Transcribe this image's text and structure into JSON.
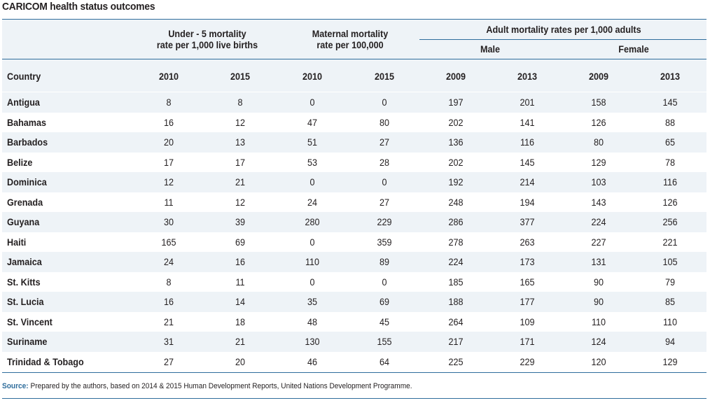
{
  "title": "CARICOM health status outcomes",
  "groups": {
    "under5": "Under - 5 mortality\nrate per 1,000 live births",
    "maternal": "Maternal mortality\nrate per 100,000",
    "adult": "Adult mortality rates per 1,000 adults",
    "male": "Male",
    "female": "Female"
  },
  "columns": {
    "country": "Country",
    "years": [
      "2010",
      "2015",
      "2010",
      "2015",
      "2009",
      "2013",
      "2009",
      "2013"
    ]
  },
  "rows": [
    {
      "country": "Antigua",
      "values": [
        "8",
        "8",
        "0",
        "0",
        "197",
        "201",
        "158",
        "145"
      ]
    },
    {
      "country": "Bahamas",
      "values": [
        "16",
        "12",
        "47",
        "80",
        "202",
        "141",
        "126",
        "88"
      ]
    },
    {
      "country": "Barbados",
      "values": [
        "20",
        "13",
        "51",
        "27",
        "136",
        "116",
        "80",
        "65"
      ]
    },
    {
      "country": "Belize",
      "values": [
        "17",
        "17",
        "53",
        "28",
        "202",
        "145",
        "129",
        "78"
      ]
    },
    {
      "country": "Dominica",
      "values": [
        "12",
        "21",
        "0",
        "0",
        "192",
        "214",
        "103",
        "116"
      ]
    },
    {
      "country": "Grenada",
      "values": [
        "11",
        "12",
        "24",
        "27",
        "248",
        "194",
        "143",
        "126"
      ]
    },
    {
      "country": "Guyana",
      "values": [
        "30",
        "39",
        "280",
        "229",
        "286",
        "377",
        "224",
        "256"
      ]
    },
    {
      "country": "Haiti",
      "values": [
        "165",
        "69",
        "0",
        "359",
        "278",
        "263",
        "227",
        "221"
      ]
    },
    {
      "country": "Jamaica",
      "values": [
        "24",
        "16",
        "110",
        "89",
        "224",
        "173",
        "131",
        "105"
      ]
    },
    {
      "country": "St. Kitts",
      "values": [
        "8",
        "11",
        "0",
        "0",
        "185",
        "165",
        "90",
        "79"
      ]
    },
    {
      "country": "St. Lucia",
      "values": [
        "16",
        "14",
        "35",
        "69",
        "188",
        "177",
        "90",
        "85"
      ]
    },
    {
      "country": "St. Vincent",
      "values": [
        "21",
        "18",
        "48",
        "45",
        "264",
        "109",
        "110",
        "110"
      ]
    },
    {
      "country": "Suriname",
      "values": [
        "31",
        "21",
        "130",
        "155",
        "217",
        "171",
        "124",
        "94"
      ]
    },
    {
      "country": "Trinidad & Tobago",
      "values": [
        "27",
        "20",
        "46",
        "64",
        "225",
        "229",
        "120",
        "129"
      ]
    }
  ],
  "source": {
    "label": "Source:",
    "text": " Prepared by the authors, based on 2014 & 2015 Human Development Reports, United Nations Development Programme."
  },
  "colors": {
    "accent_rule": "#2f6d9c",
    "row_shade": "#eef3f7",
    "text": "#231f20"
  }
}
